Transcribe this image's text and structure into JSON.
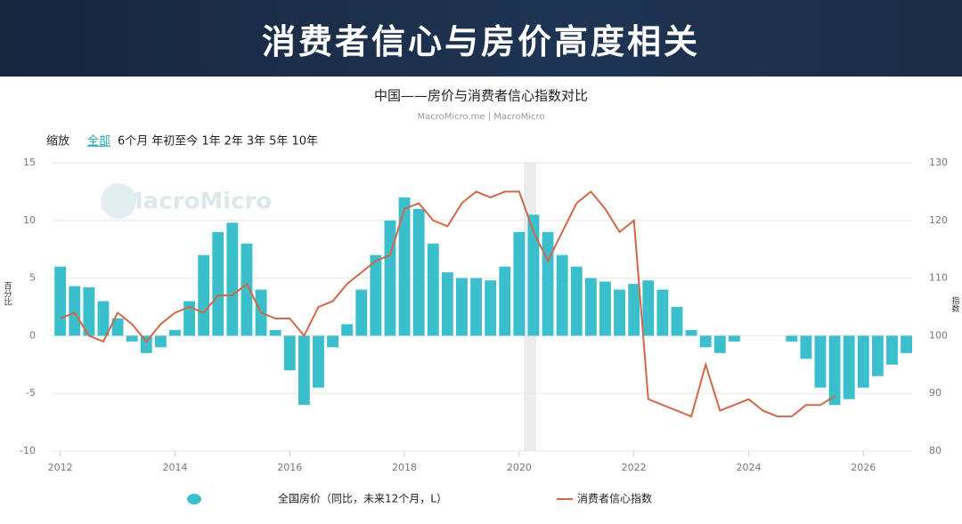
{
  "banner": {
    "title": "消费者信心与房价高度相关"
  },
  "zoom": {
    "label": "缩放",
    "buttons": [
      "全部",
      "6个月",
      "年初至今",
      "1年",
      "2年",
      "3年",
      "5年",
      "10年"
    ]
  },
  "watermark": "MacroMicro",
  "chart_data": {
    "type": "bar-line",
    "title": "中国——房价与消费者信心指数对比",
    "subtitle": "MacroMicro.me | MacroMicro",
    "y_label": "百分比",
    "y2_label": "指数",
    "x": [
      2012,
      2012.25,
      2012.5,
      2012.75,
      2013,
      2013.25,
      2013.5,
      2013.75,
      2014,
      2014.25,
      2014.5,
      2014.75,
      2015,
      2015.25,
      2015.5,
      2015.75,
      2016,
      2016.25,
      2016.5,
      2016.75,
      2017,
      2017.25,
      2017.5,
      2017.75,
      2018,
      2018.25,
      2018.5,
      2018.75,
      2019,
      2019.25,
      2019.5,
      2019.75,
      2020,
      2020.25,
      2020.5,
      2020.75,
      2021,
      2021.25,
      2021.5,
      2021.75,
      2022,
      2022.25,
      2022.5,
      2022.75,
      2023,
      2023.25,
      2023.5,
      2023.75,
      2024,
      2024.25,
      2024.5,
      2024.75,
      2025,
      2025.25,
      2025.5,
      2025.75,
      2026,
      2026.25,
      2026.5,
      2026.75
    ],
    "xlim": [
      2011.85,
      2026.85
    ],
    "xticks": [
      2012,
      2014,
      2016,
      2018,
      2020,
      2022,
      2024,
      2026
    ],
    "ylim": [
      -10,
      15
    ],
    "yticks": [
      -10,
      -5,
      0,
      5,
      10,
      15
    ],
    "y2lim": [
      80,
      130
    ],
    "y2ticks": [
      80,
      90,
      100,
      110,
      120,
      130
    ],
    "grid": true,
    "series": [
      {
        "name": "全国房价（同比，未来12个月，L）",
        "color": "#3bbfcc",
        "values": [
          6,
          4.3,
          4.2,
          3,
          1.5,
          -0.5,
          -1.5,
          -1,
          0.5,
          3,
          7,
          9,
          9.8,
          8,
          4,
          0.5,
          -3,
          -6,
          -4.5,
          -1,
          1,
          4,
          7,
          10,
          12,
          11,
          8,
          5.5,
          5,
          5,
          4.8,
          6,
          9,
          10.5,
          9,
          7,
          6,
          5,
          4.7,
          4,
          4.5,
          4.8,
          4,
          2.5,
          0.5,
          -1,
          -1.5,
          -0.5,
          0,
          0,
          0,
          -0.5,
          -2,
          -4.5,
          -6,
          -5.5,
          -4.5,
          -3.5,
          -2.5,
          -1.5
        ]
      },
      {
        "name": "消费者信心指数",
        "color": "#d0684a",
        "axis": "y2",
        "values": [
          103,
          104,
          100,
          99,
          104,
          102,
          99,
          102,
          104,
          105,
          104,
          107,
          107,
          109,
          104,
          103,
          103,
          100,
          105,
          106,
          109,
          111,
          113,
          114,
          122,
          123,
          120,
          119,
          123,
          125,
          124,
          125,
          125,
          118,
          113,
          118,
          123,
          125,
          122,
          118,
          120,
          89,
          88,
          87,
          86,
          95,
          87,
          88,
          89,
          87,
          86,
          86,
          88,
          88,
          89.5,
          null,
          null,
          null,
          null,
          null
        ]
      }
    ]
  }
}
